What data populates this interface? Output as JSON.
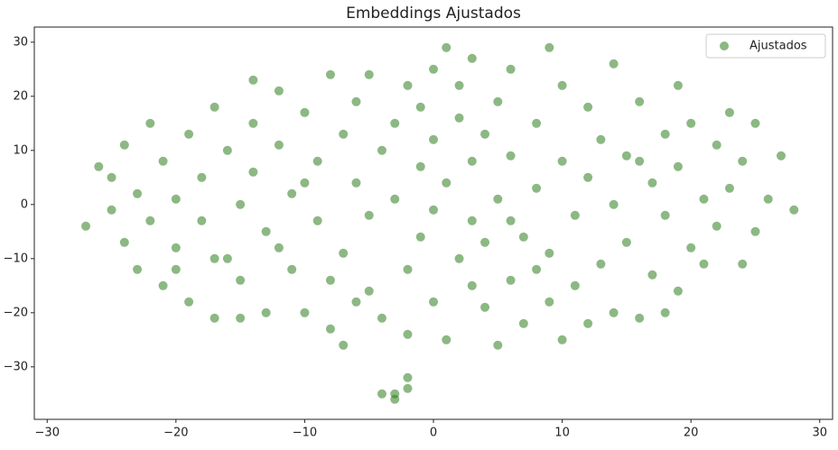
{
  "chart_data": {
    "type": "scatter",
    "title": "Embeddings Ajustados",
    "series": [
      {
        "name": "Ajustados",
        "color": "#2e7d1e",
        "x": [
          -27,
          -26,
          -25,
          -25,
          -24,
          -24,
          -23,
          -23,
          -22,
          -22,
          -21,
          -21,
          -20,
          -20,
          -19,
          -19,
          -18,
          -18,
          -17,
          -17,
          -16,
          -16,
          -15,
          -15,
          -14,
          -14,
          -13,
          -13,
          -12,
          -12,
          -11,
          -11,
          -10,
          -10,
          -9,
          -9,
          -8,
          -8,
          -7,
          -7,
          -7,
          -6,
          -6,
          -5,
          -5,
          -5,
          -4,
          -4,
          -3,
          -3,
          -3,
          -2,
          -4,
          -2,
          -3,
          -2,
          -2,
          -1,
          -1,
          -1,
          0,
          0,
          0,
          1,
          1,
          1,
          2,
          2,
          2,
          3,
          3,
          3,
          4,
          4,
          5,
          5,
          5,
          6,
          6,
          6,
          7,
          7,
          8,
          8,
          9,
          9,
          9,
          10,
          10,
          11,
          11,
          12,
          12,
          13,
          13,
          14,
          14,
          14,
          15,
          15,
          16,
          16,
          17,
          17,
          18,
          18,
          19,
          19,
          19,
          20,
          20,
          21,
          21,
          22,
          22,
          23,
          23,
          24,
          24,
          25,
          25,
          26,
          27,
          28,
          -8,
          -12,
          -15,
          10,
          6,
          -20,
          16,
          -6,
          3,
          12,
          -10,
          8,
          -2,
          0,
          -14,
          18,
          -17,
          4
        ],
        "y": [
          -4,
          7,
          -1,
          5,
          -7,
          11,
          2,
          -12,
          15,
          -3,
          8,
          -15,
          1,
          -8,
          13,
          -18,
          5,
          -3,
          18,
          -21,
          10,
          -10,
          0,
          -14,
          15,
          6,
          -5,
          -20,
          21,
          11,
          -12,
          2,
          -20,
          17,
          8,
          -3,
          -23,
          24,
          -26,
          13,
          -9,
          4,
          19,
          -16,
          24,
          -2,
          10,
          -21,
          15,
          -35,
          -36,
          -34,
          -35,
          -32,
          1,
          22,
          -12,
          7,
          -6,
          18,
          -18,
          12,
          -1,
          29,
          -25,
          4,
          16,
          -10,
          22,
          27,
          -3,
          8,
          -19,
          13,
          -26,
          1,
          19,
          -14,
          9,
          25,
          -6,
          -22,
          15,
          3,
          29,
          -18,
          -9,
          22,
          8,
          -2,
          -15,
          18,
          5,
          -11,
          12,
          -20,
          26,
          0,
          9,
          -7,
          19,
          -21,
          4,
          -13,
          13,
          -2,
          22,
          -16,
          7,
          -8,
          15,
          1,
          -11,
          11,
          -4,
          17,
          3,
          -11,
          8,
          -5,
          15,
          1,
          9,
          -1,
          -14,
          -8,
          -21,
          -25,
          -3,
          -12,
          8,
          -18,
          -15,
          -22,
          4,
          -12,
          -24,
          25,
          23,
          -20,
          -10,
          -7
        ]
      }
    ],
    "xlim": [
      -31,
      31
    ],
    "ylim": [
      -39.7,
      32.8
    ],
    "xticks": [
      {
        "value": -30,
        "label": "−30"
      },
      {
        "value": -20,
        "label": "−20"
      },
      {
        "value": -10,
        "label": "−10"
      },
      0,
      10,
      20,
      30
    ],
    "yticks": [
      {
        "value": -30,
        "label": "−30"
      },
      {
        "value": -20,
        "label": "−20"
      },
      {
        "value": -10,
        "label": "−10"
      },
      0,
      10,
      20,
      30
    ],
    "legend": "upper right"
  }
}
